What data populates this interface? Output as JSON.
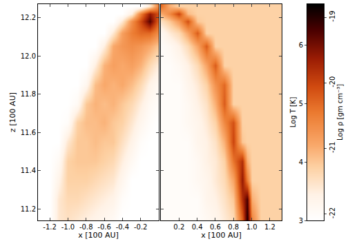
{
  "chart_data": [
    {
      "type": "heatmap",
      "xlabel": "x [100 AU]",
      "ylabel": "z [100 AU]",
      "xlim": [
        -1.33,
        0
      ],
      "xticks": [
        -1.2,
        {
          "value": -1.0,
          "label": "-1.0"
        },
        -0.8,
        -0.6,
        -0.4,
        -0.2
      ],
      "ylim": [
        11.14,
        12.27
      ],
      "yticks": [
        11.2,
        11.4,
        11.6,
        11.8,
        {
          "value": 12.0,
          "label": "12.0"
        },
        12.2
      ],
      "x": [
        -1.3,
        -1.2,
        -1.1,
        -1.0,
        -0.9,
        -0.8,
        -0.7,
        -0.6,
        -0.5,
        -0.4,
        -0.3,
        -0.2,
        -0.1,
        0
      ],
      "y": [
        11.15,
        11.25,
        11.35,
        11.45,
        11.55,
        11.65,
        11.75,
        11.85,
        11.95,
        12.05,
        12.12,
        12.18,
        12.22,
        12.26
      ],
      "cells": [
        [
          3,
          3,
          3.6,
          3.7,
          3.6,
          3.5,
          3.4,
          3.3,
          3.2,
          3.0,
          3.0,
          3.0,
          3.0,
          3.0
        ],
        [
          3,
          3,
          3.6,
          3.8,
          3.8,
          3.7,
          3.6,
          3.5,
          3.4,
          3.1,
          3.0,
          3.0,
          3.0,
          3.0
        ],
        [
          3,
          3,
          3.4,
          3.9,
          3.9,
          3.9,
          3.8,
          3.7,
          3.6,
          3.3,
          3.0,
          3.0,
          3.0,
          3.0
        ],
        [
          3,
          3,
          3.2,
          3.9,
          4.0,
          4.0,
          4.0,
          3.9,
          3.8,
          3.5,
          3.2,
          3.0,
          3.0,
          3.0
        ],
        [
          3,
          3,
          3,
          3.6,
          4.0,
          4.0,
          4.1,
          4.0,
          4.0,
          3.7,
          3.4,
          3.1,
          3.0,
          3.0
        ],
        [
          3,
          3,
          3,
          3.1,
          3.9,
          4.1,
          4.1,
          4.2,
          4.0,
          3.9,
          3.6,
          3.3,
          3.1,
          3.0
        ],
        [
          3,
          3,
          3,
          3,
          3.2,
          4.0,
          4.2,
          4.1,
          4.2,
          4.0,
          3.8,
          3.5,
          3.2,
          3.1
        ],
        [
          3,
          3,
          3,
          3,
          3,
          3.3,
          4.1,
          4.3,
          4.2,
          4.3,
          4.1,
          3.8,
          3.4,
          3.2
        ],
        [
          3,
          3,
          3,
          3,
          3,
          3,
          3.5,
          4.2,
          4.4,
          4.3,
          4.4,
          4.2,
          3.8,
          3.5
        ],
        [
          3,
          3,
          3,
          3,
          3,
          3,
          3,
          3.5,
          4.3,
          4.5,
          4.6,
          4.5,
          4.3,
          4.0
        ],
        [
          3,
          3,
          3,
          3,
          3,
          3,
          3,
          3,
          3.6,
          4.4,
          4.8,
          5.0,
          5.0,
          4.6
        ],
        [
          3,
          3,
          3,
          3,
          3,
          3,
          3,
          3,
          3,
          3.6,
          4.6,
          5.3,
          6.2,
          5.0
        ],
        [
          3,
          3,
          3,
          3,
          3,
          3,
          3,
          3,
          3,
          3,
          3.5,
          4.8,
          5.8,
          5.2
        ],
        [
          3,
          3,
          3,
          3,
          3,
          3,
          3,
          3,
          3,
          3,
          3,
          3,
          3.6,
          4.8
        ]
      ],
      "color_range": [
        3,
        6.7
      ],
      "color_ticks": [
        3,
        4,
        5,
        6
      ],
      "color_label": "Log T [K]"
    },
    {
      "type": "heatmap",
      "xlabel": "x [100 AU]",
      "xlim": [
        0,
        1.33
      ],
      "xticks": [
        0.2,
        0.4,
        0.6,
        0.8,
        {
          "value": 1.0,
          "label": "1.0"
        },
        1.2
      ],
      "ylim": [
        11.14,
        12.27
      ],
      "yticks": [
        11.2,
        11.4,
        11.6,
        11.8,
        {
          "value": 12.0,
          "label": "12.0"
        },
        12.2
      ],
      "tick_labels": "x",
      "x": [
        0,
        0.1,
        0.2,
        0.3,
        0.4,
        0.5,
        0.6,
        0.7,
        0.8,
        0.9,
        0.95,
        1.0,
        1.1,
        1.2,
        1.3
      ],
      "y": [
        11.15,
        11.25,
        11.35,
        11.45,
        11.55,
        11.65,
        11.75,
        11.85,
        11.95,
        12.05,
        12.12,
        12.18,
        12.22,
        12.26
      ],
      "cells": [
        [
          -22,
          -22,
          -22,
          -22,
          -22,
          -21.9,
          -21.8,
          -21.6,
          -21.4,
          -20.2,
          -19.0,
          -20.6,
          -21.3,
          -21.3,
          -21.3
        ],
        [
          -22,
          -22,
          -22,
          -22,
          -22,
          -21.8,
          -21.7,
          -21.5,
          -21.2,
          -19.8,
          -19.2,
          -21.0,
          -21.3,
          -21.3,
          -21.3
        ],
        [
          -22,
          -22,
          -22,
          -22,
          -21.9,
          -21.8,
          -21.6,
          -21.4,
          -20.9,
          -19.6,
          -20.5,
          -21.3,
          -21.3,
          -21.3,
          -21.3
        ],
        [
          -22,
          -22,
          -22,
          -22,
          -21.9,
          -21.7,
          -21.6,
          -21.3,
          -20.4,
          -19.8,
          -21.0,
          -21.3,
          -21.3,
          -21.3,
          -21.3
        ],
        [
          -22,
          -22,
          -22,
          -22,
          -21.8,
          -21.7,
          -21.5,
          -21.0,
          -20.0,
          -21.2,
          -21.3,
          -21.3,
          -21.3,
          -21.3,
          -21.3
        ],
        [
          -22,
          -22,
          -22,
          -21.9,
          -21.8,
          -21.6,
          -21.3,
          -20.6,
          -20.1,
          -21.3,
          -21.3,
          -21.3,
          -21.3,
          -21.3,
          -21.3
        ],
        [
          -22,
          -22,
          -22,
          -21.9,
          -21.7,
          -21.5,
          -21.0,
          -20.2,
          -21.3,
          -21.3,
          -21.3,
          -21.3,
          -21.3,
          -21.3,
          -21.3
        ],
        [
          -22,
          -22,
          -22,
          -21.8,
          -21.6,
          -21.3,
          -20.7,
          -20.3,
          -21.3,
          -21.3,
          -21.3,
          -21.3,
          -21.3,
          -21.3,
          -21.3
        ],
        [
          -22,
          -22,
          -21.9,
          -21.7,
          -21.4,
          -20.9,
          -20.2,
          -21.3,
          -21.3,
          -21.3,
          -21.3,
          -21.3,
          -21.3,
          -21.3,
          -21.3
        ],
        [
          -22,
          -21.9,
          -21.7,
          -21.4,
          -20.9,
          -20.2,
          -21.3,
          -21.3,
          -21.3,
          -21.3,
          -21.3,
          -21.3,
          -21.3,
          -21.3,
          -21.3
        ],
        [
          -21.9,
          -21.6,
          -21.4,
          -20.9,
          -20.2,
          -21.3,
          -21.3,
          -21.3,
          -21.3,
          -21.3,
          -21.3,
          -21.3,
          -21.3,
          -21.3,
          -21.3
        ],
        [
          -21.5,
          -21.2,
          -20.8,
          -20.1,
          -21.2,
          -21.3,
          -21.3,
          -21.3,
          -21.3,
          -21.3,
          -21.3,
          -21.3,
          -21.3,
          -21.3,
          -21.3
        ],
        [
          -21.0,
          -20.6,
          -20.0,
          -21.1,
          -21.3,
          -21.3,
          -21.3,
          -21.3,
          -21.3,
          -21.3,
          -21.3,
          -21.3,
          -21.3,
          -21.3,
          -21.3
        ],
        [
          -20.3,
          -21.0,
          -21.3,
          -21.3,
          -21.3,
          -21.3,
          -21.3,
          -21.3,
          -21.3,
          -21.3,
          -21.3,
          -21.3,
          -21.3,
          -21.3,
          -21.3
        ]
      ],
      "color_range": [
        -22.1,
        -18.8
      ],
      "color_ticks": [
        -22,
        -21,
        -20,
        -19
      ],
      "color_label": "Log ρ [gm cm⁻³]"
    }
  ]
}
